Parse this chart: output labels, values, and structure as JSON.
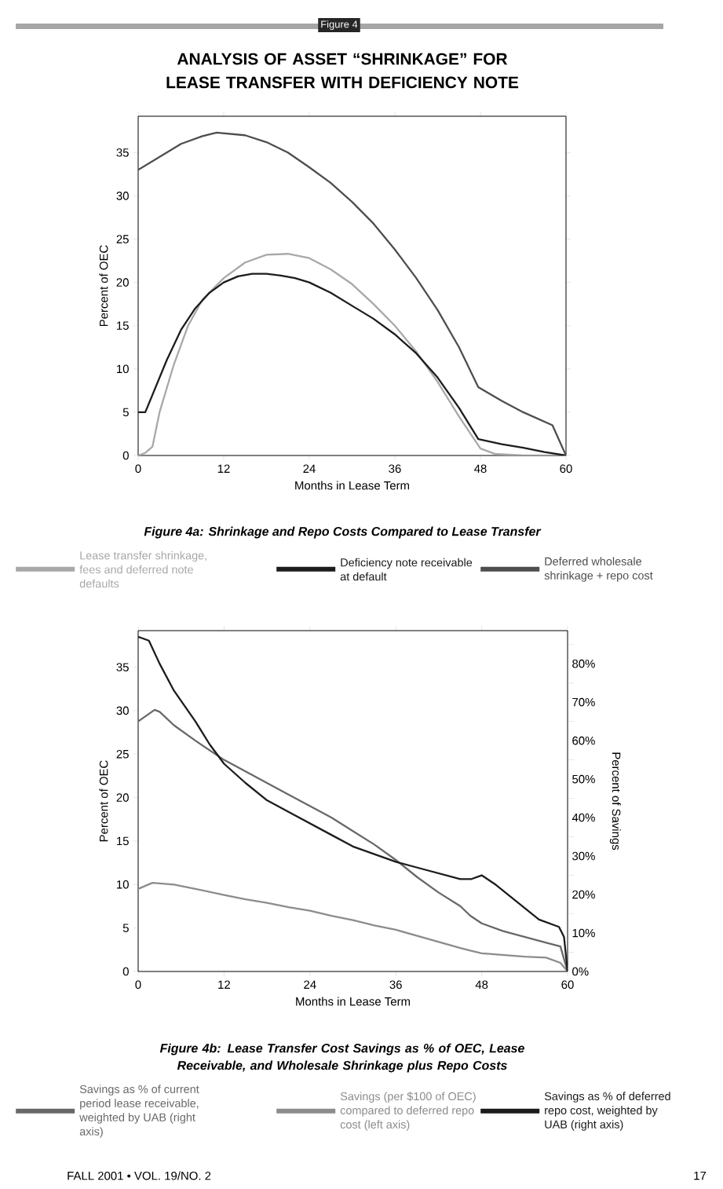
{
  "chart_data": [
    {
      "type": "line",
      "title": "ANALYSIS OF ASSET “SHRINKAGE” FOR LEASE TRANSFER WITH DEFICIENCY NOTE",
      "xlabel": "Months in Lease Term",
      "ylabel": "Percent of OEC",
      "annotations": [
        "Figure 4",
        "Figure 4a: Shrinkage and Repo Costs Compared to Lease Transfer"
      ],
      "xlim": [
        0,
        60
      ],
      "xticks": [
        0,
        12,
        24,
        36,
        48,
        60
      ],
      "ylim": [
        0,
        39.2
      ],
      "yticks": [
        0,
        5,
        10,
        15,
        20,
        25,
        30,
        35
      ],
      "grid": false,
      "legend": "bottom",
      "series": [
        {
          "name": "Lease transfer shrinkage, fees and deferred note defaults",
          "color": "#a8a8a8",
          "x": [
            0,
            1,
            2,
            3,
            5,
            7,
            9,
            12,
            15,
            18,
            21,
            24,
            27,
            30,
            33,
            36,
            39,
            42,
            45,
            48,
            50,
            54,
            60
          ],
          "values": [
            0,
            0.3,
            1,
            5,
            10.5,
            15,
            18,
            20.5,
            22.3,
            23.2,
            23.3,
            22.8,
            21.5,
            19.8,
            17.5,
            15,
            12,
            8.5,
            4.5,
            0.8,
            0.2,
            0,
            0
          ]
        },
        {
          "name": "Deficiency note receivable at default",
          "color": "#1c1c1c",
          "x": [
            0,
            1,
            2,
            4,
            6,
            8,
            10,
            12,
            14,
            16,
            18,
            20,
            22,
            24,
            27,
            30,
            33,
            36,
            39,
            42,
            45,
            47.7,
            51,
            54,
            57,
            60
          ],
          "values": [
            5,
            5,
            7,
            11,
            14.5,
            17,
            18.8,
            20,
            20.7,
            21,
            21,
            20.8,
            20.5,
            20,
            18.8,
            17.3,
            15.8,
            14,
            11.8,
            9,
            5.5,
            1.9,
            1.3,
            0.9,
            0.4,
            0
          ]
        },
        {
          "name": "Deferred wholesale shrinkage + repo cost",
          "color": "#4e4e4e",
          "x": [
            0,
            3,
            6,
            9,
            11,
            15,
            18,
            21,
            24,
            27,
            30,
            33,
            36,
            39,
            42,
            45,
            47.7,
            51,
            54,
            58.1,
            60
          ],
          "values": [
            33,
            34.5,
            36,
            36.9,
            37.3,
            37,
            36.2,
            35,
            33.3,
            31.5,
            29.3,
            26.8,
            23.8,
            20.5,
            16.8,
            12.5,
            7.9,
            6.3,
            5,
            3.5,
            0
          ]
        }
      ]
    },
    {
      "type": "line",
      "xlabel": "Months in Lease Term",
      "ylabel": "Percent of OEC",
      "y2label": "Percent of Savings",
      "annotations": [
        "Figure 4b: Lease Transfer Cost Savings as % of OEC, Lease Receivable, and Wholesale Shrinkage plus Repo Costs",
        "FALL 2001 • VOL. 19/NO. 2",
        "17"
      ],
      "xlim": [
        0,
        60
      ],
      "xticks": [
        0,
        12,
        24,
        36,
        48,
        60
      ],
      "ylim": [
        0,
        39.2
      ],
      "yticks": [
        0,
        5,
        10,
        15,
        20,
        25,
        30,
        35
      ],
      "y2lim": [
        0,
        88.6
      ],
      "y2ticks": [
        {
          "value": 0,
          "label": "0%"
        },
        {
          "value": 10,
          "label": "10%"
        },
        {
          "value": 20,
          "label": "20%"
        },
        {
          "value": 30,
          "label": "30%"
        },
        {
          "value": 40,
          "label": "40%"
        },
        {
          "value": 50,
          "label": "50%"
        },
        {
          "value": 60,
          "label": "60%"
        },
        {
          "value": 70,
          "label": "70%"
        },
        {
          "value": 80,
          "label": "80%"
        },
        {
          "value": 5,
          "label": null
        },
        {
          "value": 15,
          "label": null
        },
        {
          "value": 25,
          "label": null
        },
        {
          "value": 35,
          "label": null
        },
        {
          "value": 45,
          "label": null
        },
        {
          "value": 55,
          "label": null
        },
        {
          "value": 65,
          "label": null
        },
        {
          "value": 75,
          "label": null
        },
        {
          "value": 85,
          "label": null
        }
      ],
      "grid": false,
      "legend": "bottom",
      "series": [
        {
          "name": "Savings as % of current period lease receivable, weighted by UAB (right axis)",
          "color": "#686868",
          "axis": "y2",
          "x": [
            0,
            2.3,
            3,
            5,
            8,
            12,
            15,
            18,
            21,
            24,
            27,
            30,
            33,
            36,
            39,
            42,
            45,
            46.4,
            48,
            51,
            54,
            57,
            59,
            60
          ],
          "values": [
            65,
            68,
            67.5,
            64,
            60,
            55,
            52,
            49,
            46,
            43,
            40,
            36.5,
            33,
            29,
            24.5,
            20.5,
            17,
            14.5,
            12.5,
            10.5,
            9,
            7.5,
            6.5,
            0
          ]
        },
        {
          "name": "Savings (per $100 of OEC) compared to deferred repo cost (left axis)",
          "color": "#8c8c8c",
          "x": [
            0,
            2,
            5,
            8,
            12,
            15,
            18,
            21,
            24,
            27,
            30,
            33,
            36,
            39,
            42,
            45,
            46.4,
            48,
            51,
            54,
            57,
            59,
            60
          ],
          "values": [
            9.5,
            10.2,
            10,
            9.5,
            8.8,
            8.3,
            7.9,
            7.4,
            7,
            6.4,
            5.9,
            5.3,
            4.8,
            4.1,
            3.4,
            2.7,
            2.4,
            2.1,
            1.9,
            1.7,
            1.6,
            1,
            0
          ]
        },
        {
          "name": "Savings as % of deferred repo cost, weighted by UAB (right axis)",
          "color": "#1c1c1c",
          "axis": "y2",
          "x": [
            0,
            1.5,
            3,
            5,
            8,
            10,
            12,
            15,
            18,
            21,
            24,
            27,
            30,
            33,
            36,
            39,
            42,
            45,
            46.5,
            48,
            50,
            53,
            56,
            58.8,
            59.5,
            60
          ],
          "values": [
            87,
            86,
            80,
            73,
            65,
            59,
            54,
            49,
            44.5,
            41.5,
            38.5,
            35.5,
            32.5,
            30.5,
            28.5,
            27,
            25.5,
            24,
            24,
            25,
            22.5,
            18,
            13.5,
            11.6,
            9,
            0
          ]
        }
      ]
    }
  ]
}
